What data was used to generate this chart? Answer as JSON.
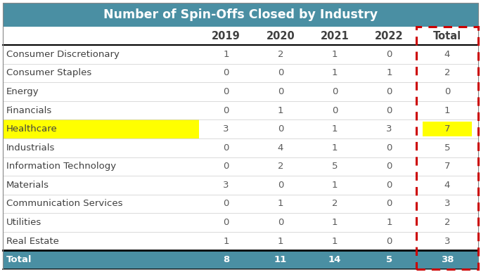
{
  "title": "Number of Spin-Offs Closed by Industry",
  "title_bg_color": "#4a8fa3",
  "total_row_bg_color": "#4a8fa3",
  "columns": [
    "",
    "2019",
    "2020",
    "2021",
    "2022",
    "Total"
  ],
  "rows": [
    [
      "Consumer Discretionary",
      1,
      2,
      1,
      0,
      4
    ],
    [
      "Consumer Staples",
      0,
      0,
      1,
      1,
      2
    ],
    [
      "Energy",
      0,
      0,
      0,
      0,
      0
    ],
    [
      "Financials",
      0,
      1,
      0,
      0,
      1
    ],
    [
      "Healthcare",
      3,
      0,
      1,
      3,
      7
    ],
    [
      "Industrials",
      0,
      4,
      1,
      0,
      5
    ],
    [
      "Information Technology",
      0,
      2,
      5,
      0,
      7
    ],
    [
      "Materials",
      3,
      0,
      1,
      0,
      4
    ],
    [
      "Communication Services",
      0,
      1,
      2,
      0,
      3
    ],
    [
      "Utilities",
      0,
      0,
      1,
      1,
      2
    ],
    [
      "Real Estate",
      1,
      1,
      1,
      0,
      3
    ]
  ],
  "total_row": [
    "Total",
    8,
    11,
    14,
    5,
    38
  ],
  "healthcare_row_index": 4,
  "highlight_yellow_bg": "#ffff00",
  "dashed_border_color": "#cc0000",
  "table_bg_color": "#ffffff",
  "header_text_color": "#ffffff",
  "total_row_text_color": "#ffffff",
  "row_text_color": "#404040",
  "data_value_color": "#5a5a5a",
  "header_fontsize": 10.5,
  "cell_fontsize": 9.5,
  "title_fontsize": 12.5,
  "col_widths_ratio": [
    2.6,
    0.72,
    0.72,
    0.72,
    0.72,
    0.82
  ]
}
